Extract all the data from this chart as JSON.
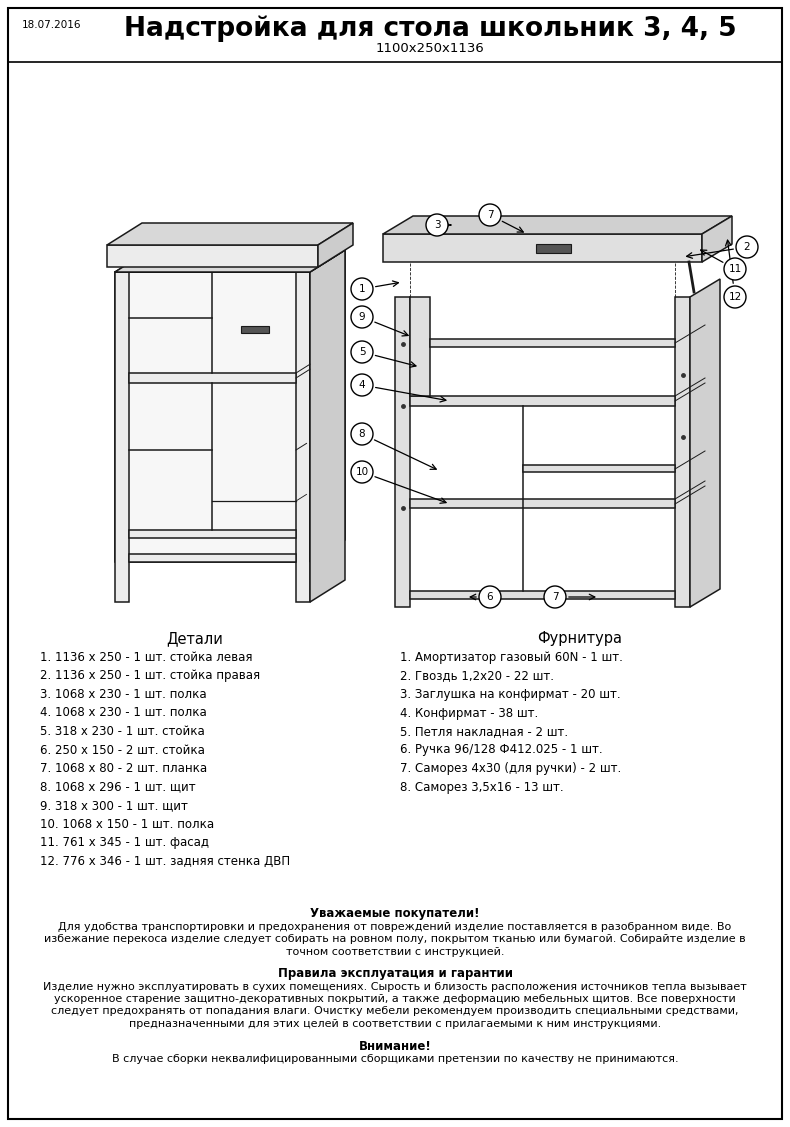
{
  "title": "Надстройка для стола школьник 3, 4, 5",
  "subtitle": "1100x250x1136",
  "date": "18.07.2016",
  "bg_color": "#ffffff",
  "border_color": "#000000",
  "details_header": "Детали",
  "hardware_header": "Фурнитура",
  "details": [
    "1. 1136 х 250 - 1 шт. стойка левая",
    "2. 1136 х 250 - 1 шт. стойка правая",
    "3. 1068 х 230 - 1 шт. полка",
    "4. 1068 х 230 - 1 шт. полка",
    "5. 318 х 230 - 1 шт. стойка",
    "6. 250 х 150 - 2 шт. стойка",
    "7. 1068 х 80 - 2 шт. планка",
    "8. 1068 х 296 - 1 шт. щит",
    "9. 318 х 300 - 1 шт. щит",
    "10. 1068 х 150 - 1 шт. полка",
    "11. 761 х 345 - 1 шт. фасад",
    "12. 776 х 346 - 1 шт. задняя стенка ДВП"
  ],
  "hardware": [
    "1. Амортизатор газовый 60N - 1 шт.",
    "2. Гвоздь 1,2х20 - 22 шт.",
    "3. Заглушка на конфирмат - 20 шт.",
    "4. Конфирмат - 38 шт.",
    "5. Петля накладная - 2 шт.",
    "6. Ручка 96/128 Ф412.025 - 1 шт.",
    "7. Саморез 4х30 (для ручки) - 2 шт.",
    "8. Саморез 3,5х16 - 13 шт."
  ],
  "note_title": "Уважаемые покупатели!",
  "note_lines": [
    "Для удобства транспортировки и предохранения от повреждений изделие поставляется в разобранном виде. Во",
    "избежание перекоса изделие следует собирать на ровном полу, покрытом тканью или бумагой. Собирайте изделие в",
    "точном соответствии с инструкцией."
  ],
  "warranty_title": "Правила эксплуатация и гарантии",
  "warranty_lines": [
    "Изделие нужно эксплуатировать в сухих помещениях. Сырость и близость расположения источников тепла вызывает",
    "ускоренное старение защитно-декоративных покрытий, а также деформацию мебельных щитов. Все поверхности",
    "следует предохранять от попадания влаги. Очистку мебели рекомендуем производить специальными средствами,",
    "предназначенными для этих целей в соответствии с прилагаемыми к ним инструкциями."
  ],
  "warning_title": "Внимание!",
  "warning_line": "В случае сборки неквалифицированными сборщиками претензии по качеству не принимаются."
}
